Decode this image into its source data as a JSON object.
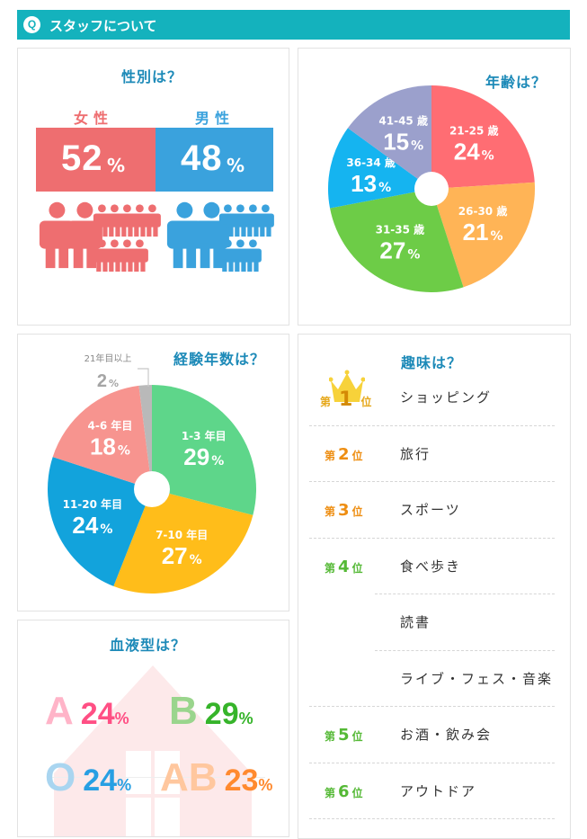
{
  "header": {
    "icon": "Q",
    "title": "スタッフについて"
  },
  "gender": {
    "title": "性別は？",
    "female": {
      "label": "女性",
      "value": "52",
      "unit": "%",
      "color": "#ee6e70"
    },
    "male": {
      "label": "男性",
      "value": "48",
      "unit": "%",
      "color": "#3aa2dd"
    }
  },
  "age": {
    "title": "年齢は？",
    "chart_data": {
      "type": "pie",
      "categories": [
        "21-25 歳",
        "26-30 歳",
        "31-35 歳",
        "36-34 歳",
        "41-45 歳"
      ],
      "values": [
        24,
        21,
        27,
        13,
        15
      ],
      "unit": "%",
      "colors": [
        "#ff6d73",
        "#ffb456",
        "#6dcc47",
        "#15b4f0",
        "#9ba0cc"
      ]
    }
  },
  "experience": {
    "title": "経験年数は？",
    "chart_data": {
      "type": "pie",
      "categories": [
        "1-3 年目",
        "7-10 年目",
        "11-20 年目",
        "4-6 年目",
        "21年目以上"
      ],
      "values": [
        29,
        27,
        24,
        18,
        2
      ],
      "unit": "%",
      "colors": [
        "#5ed68a",
        "#ffbd1a",
        "#12a3dc",
        "#f7948f",
        "#b9b9b9"
      ]
    }
  },
  "hobbies": {
    "title": "趣味は？",
    "rank_prefix": "第",
    "rank_suffix": "位",
    "items": [
      {
        "rank": "1",
        "name": "ショッピング",
        "color": "#e6a81b"
      },
      {
        "rank": "2",
        "name": "旅行",
        "color": "#ee8e12"
      },
      {
        "rank": "3",
        "name": "スポーツ",
        "color": "#ee8e12"
      },
      {
        "rank": "4",
        "name": "食べ歩き",
        "color": "#55b936"
      },
      {
        "rank": "",
        "name": "読書",
        "color": "#55b936"
      },
      {
        "rank": "",
        "name": "ライブ・フェス・音楽",
        "color": "#55b936"
      },
      {
        "rank": "5",
        "name": "お酒・飲み会",
        "color": "#55b936"
      },
      {
        "rank": "6",
        "name": "アウトドア",
        "color": "#55b936"
      }
    ]
  },
  "blood": {
    "title": "血液型は？",
    "types": [
      {
        "letter": "A",
        "value": "24",
        "unit": "%",
        "letter_color": "#ffb4c8",
        "value_color": "#ff4f84"
      },
      {
        "letter": "B",
        "value": "29",
        "unit": "%",
        "letter_color": "#9ad58d",
        "value_color": "#36b42a"
      },
      {
        "letter": "O",
        "value": "24",
        "unit": "%",
        "letter_color": "#a9d5f0",
        "value_color": "#279fe3"
      },
      {
        "letter": "AB",
        "value": "23",
        "unit": "%",
        "letter_color": "#ffc79e",
        "value_color": "#ff8a2f"
      }
    ]
  }
}
